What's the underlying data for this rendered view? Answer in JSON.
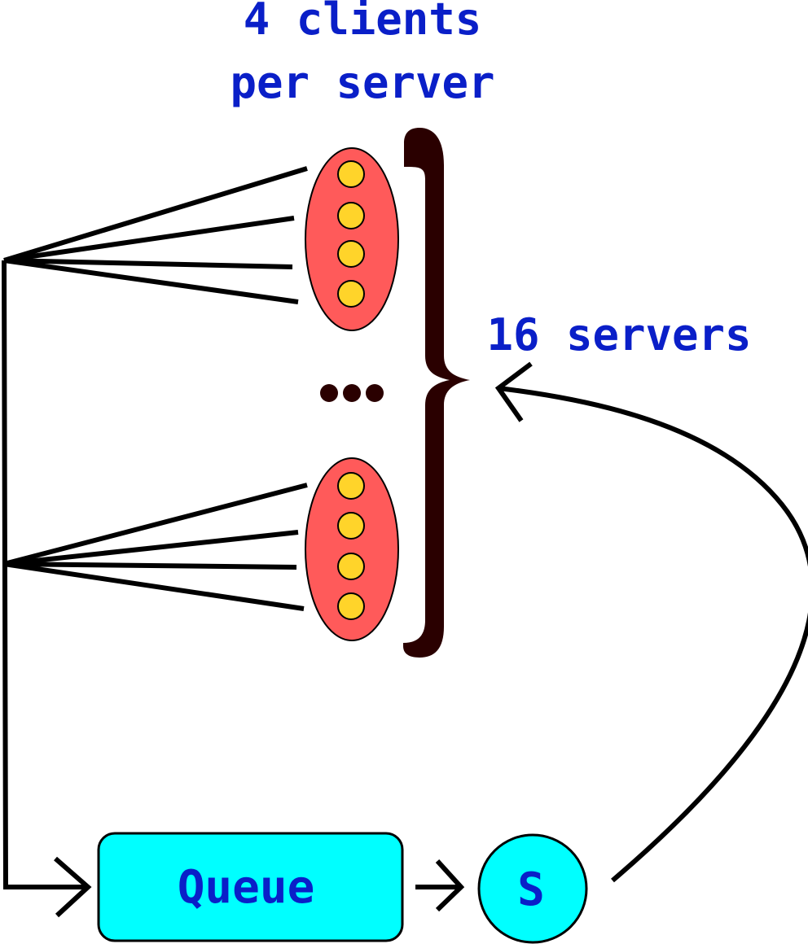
{
  "labels": {
    "clients_line1": "4 clients",
    "clients_line2": "per server",
    "servers": "16 servers",
    "queue": "Queue",
    "server": "S",
    "ellipsis": "..."
  },
  "groups": [
    {
      "name": "server-group-top",
      "clients": 4
    },
    {
      "name": "server-group-bottom",
      "clients": 4
    }
  ],
  "colors": {
    "label_text": "#0a1fc8",
    "server_oval": "#ff5a5a",
    "client_dot": "#ffd42a",
    "queue_fill": "#00ffff",
    "brace": "#2a0000",
    "lines": "#000000"
  }
}
